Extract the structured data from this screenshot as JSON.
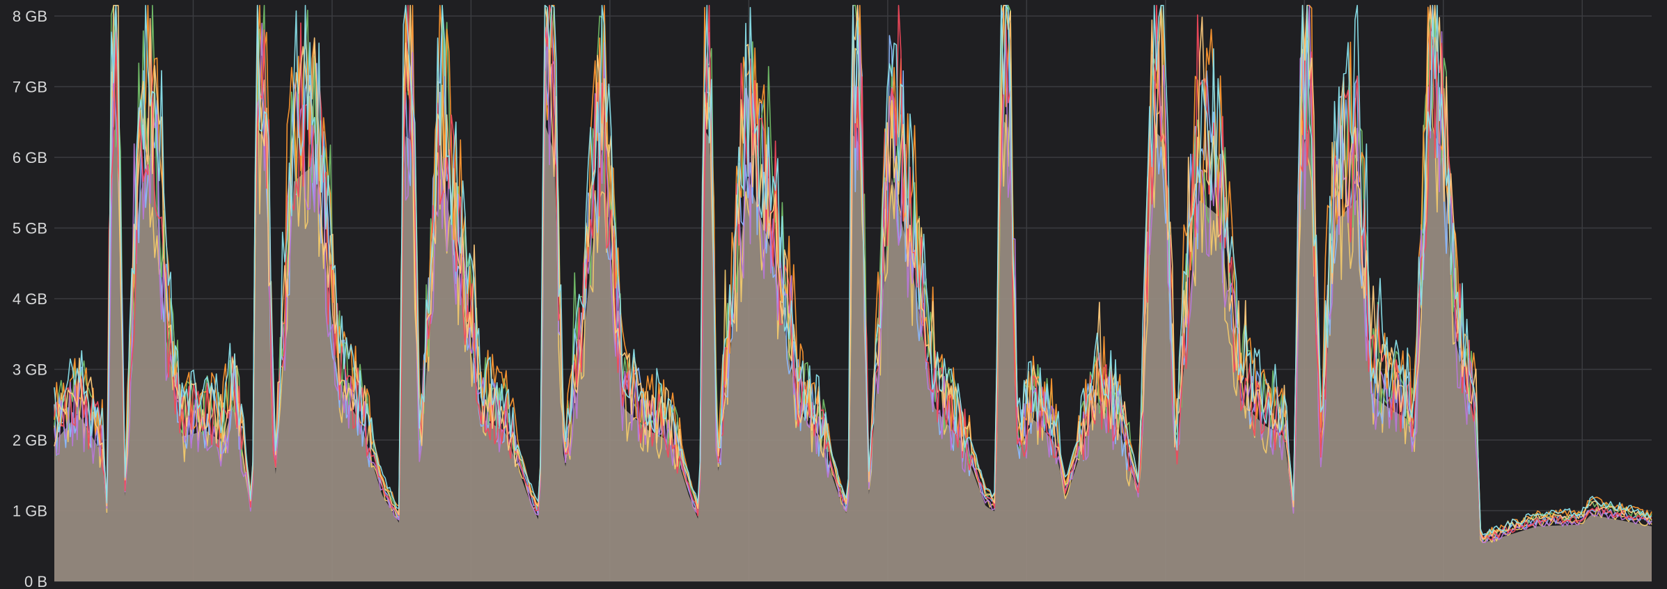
{
  "chart_data": {
    "type": "area",
    "title": "",
    "xlabel": "",
    "ylabel": "",
    "y_unit": "GB",
    "ylim": [
      0,
      8.2
    ],
    "y_ticks": [
      {
        "value": 0,
        "label": "0 B"
      },
      {
        "value": 1,
        "label": "1 GB"
      },
      {
        "value": 2,
        "label": "2 GB"
      },
      {
        "value": 3,
        "label": "3 GB"
      },
      {
        "value": 4,
        "label": "4 GB"
      },
      {
        "value": 5,
        "label": "5 GB"
      },
      {
        "value": 6,
        "label": "6 GB"
      },
      {
        "value": 7,
        "label": "7 GB"
      },
      {
        "value": 8,
        "label": "8 GB"
      }
    ],
    "grid": true,
    "legend": "none",
    "x_range": [
      0,
      100
    ],
    "series_count": 8,
    "colors": [
      "#f2c96d",
      "#8ab8ff",
      "#73bf69",
      "#ff9830",
      "#b877d9",
      "#f2495c",
      "#ffcb7d",
      "#8ae1ec"
    ],
    "area_fill": "#968a80",
    "envelope": [
      [
        0,
        2.4
      ],
      [
        1.5,
        2.9
      ],
      [
        3,
        2.2
      ],
      [
        3.3,
        1.1
      ],
      [
        3.6,
        7.7
      ],
      [
        4,
        7.9
      ],
      [
        4.4,
        1.3
      ],
      [
        5.3,
        6.6
      ],
      [
        6.1,
        7.5
      ],
      [
        7,
        4.2
      ],
      [
        8,
        2.5
      ],
      [
        9.5,
        2.6
      ],
      [
        10.5,
        2.4
      ],
      [
        11.3,
        3.1
      ],
      [
        12.4,
        1.0
      ],
      [
        12.7,
        7.8
      ],
      [
        13.2,
        7.6
      ],
      [
        13.8,
        1.6
      ],
      [
        15,
        6.9
      ],
      [
        16.3,
        7.2
      ],
      [
        17.8,
        3.4
      ],
      [
        19.2,
        2.7
      ],
      [
        20.5,
        1.5
      ],
      [
        21.6,
        1.0
      ],
      [
        21.9,
        7.7
      ],
      [
        22.4,
        7.6
      ],
      [
        22.9,
        2.0
      ],
      [
        24.2,
        7.3
      ],
      [
        25.5,
        4.9
      ],
      [
        26.8,
        2.8
      ],
      [
        28.2,
        2.6
      ],
      [
        29.6,
        1.5
      ],
      [
        30.4,
        1.0
      ],
      [
        30.7,
        7.9
      ],
      [
        31.3,
        7.4
      ],
      [
        31.9,
        1.8
      ],
      [
        33,
        3.8
      ],
      [
        34.3,
        7.5
      ],
      [
        35.6,
        3.0
      ],
      [
        37.2,
        2.6
      ],
      [
        38.7,
        2.4
      ],
      [
        39.7,
        1.5
      ],
      [
        40.4,
        1.0
      ],
      [
        40.7,
        7.8
      ],
      [
        41.1,
        7.6
      ],
      [
        41.5,
        1.7
      ],
      [
        43.4,
        7.0
      ],
      [
        45,
        5.6
      ],
      [
        46.5,
        3.0
      ],
      [
        48,
        2.4
      ],
      [
        49.2,
        1.4
      ],
      [
        49.7,
        1.1
      ],
      [
        50,
        7.7
      ],
      [
        50.5,
        7.5
      ],
      [
        51,
        1.5
      ],
      [
        52.4,
        7.0
      ],
      [
        53.7,
        5.4
      ],
      [
        55.1,
        3.0
      ],
      [
        56.8,
        2.4
      ],
      [
        58.3,
        1.3
      ],
      [
        58.9,
        1.2
      ],
      [
        59.3,
        8.0
      ],
      [
        59.8,
        7.8
      ],
      [
        60.3,
        2.2
      ],
      [
        61.3,
        2.8
      ],
      [
        62.6,
        2.4
      ],
      [
        63.3,
        1.4
      ],
      [
        64,
        2.0
      ],
      [
        65.3,
        3.1
      ],
      [
        66.8,
        2.5
      ],
      [
        67.9,
        1.4
      ],
      [
        68.8,
        7.8
      ],
      [
        69.5,
        7.6
      ],
      [
        70.2,
        2.0
      ],
      [
        71.6,
        6.6
      ],
      [
        72.9,
        6.3
      ],
      [
        74.3,
        3.1
      ],
      [
        75.7,
        2.7
      ],
      [
        77,
        2.5
      ],
      [
        77.6,
        1.1
      ],
      [
        78,
        7.3
      ],
      [
        78.6,
        7.9
      ],
      [
        79.3,
        2.2
      ],
      [
        80.2,
        6.2
      ],
      [
        81.6,
        6.6
      ],
      [
        82.5,
        3.2
      ],
      [
        83.5,
        3.0
      ],
      [
        84.7,
        2.8
      ],
      [
        85.2,
        2.6
      ],
      [
        86.1,
        7.9
      ],
      [
        86.9,
        7.4
      ],
      [
        87.7,
        4.2
      ],
      [
        88.4,
        3.3
      ],
      [
        89,
        2.7
      ],
      [
        89.3,
        0.65
      ],
      [
        92.8,
        0.95
      ],
      [
        95.6,
        0.98
      ],
      [
        96.2,
        1.15
      ],
      [
        99.1,
        1.0
      ],
      [
        100,
        0.95
      ]
    ]
  }
}
